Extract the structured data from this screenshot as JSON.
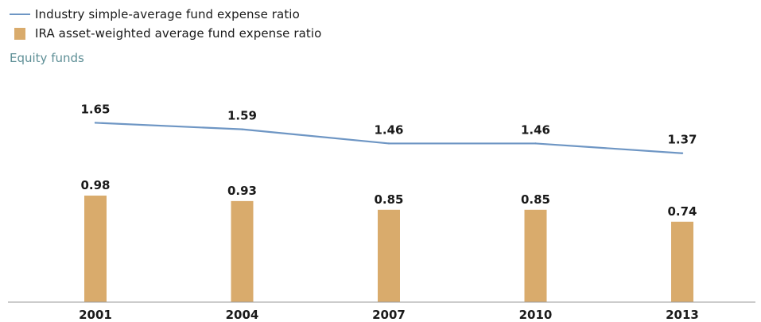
{
  "chart_data": {
    "type": "bar",
    "subtitle": "Equity funds",
    "categories": [
      "2001",
      "2004",
      "2007",
      "2010",
      "2013"
    ],
    "series": [
      {
        "name": "Industry simple-average fund expense ratio",
        "kind": "line",
        "color": "#6e96c4",
        "values": [
          1.65,
          1.59,
          1.46,
          1.46,
          1.37
        ],
        "labels": [
          "1.65",
          "1.59",
          "1.46",
          "1.46",
          "1.37"
        ]
      },
      {
        "name": "IRA asset-weighted average fund expense ratio",
        "kind": "bar",
        "color": "#d9ab6c",
        "values": [
          0.98,
          0.93,
          0.85,
          0.85,
          0.74
        ],
        "labels": [
          "0.98",
          "0.93",
          "0.85",
          "0.85",
          "0.74"
        ]
      }
    ],
    "ylim": [
      0,
      2.0
    ],
    "grid": false,
    "legend_placement": "top-left"
  }
}
